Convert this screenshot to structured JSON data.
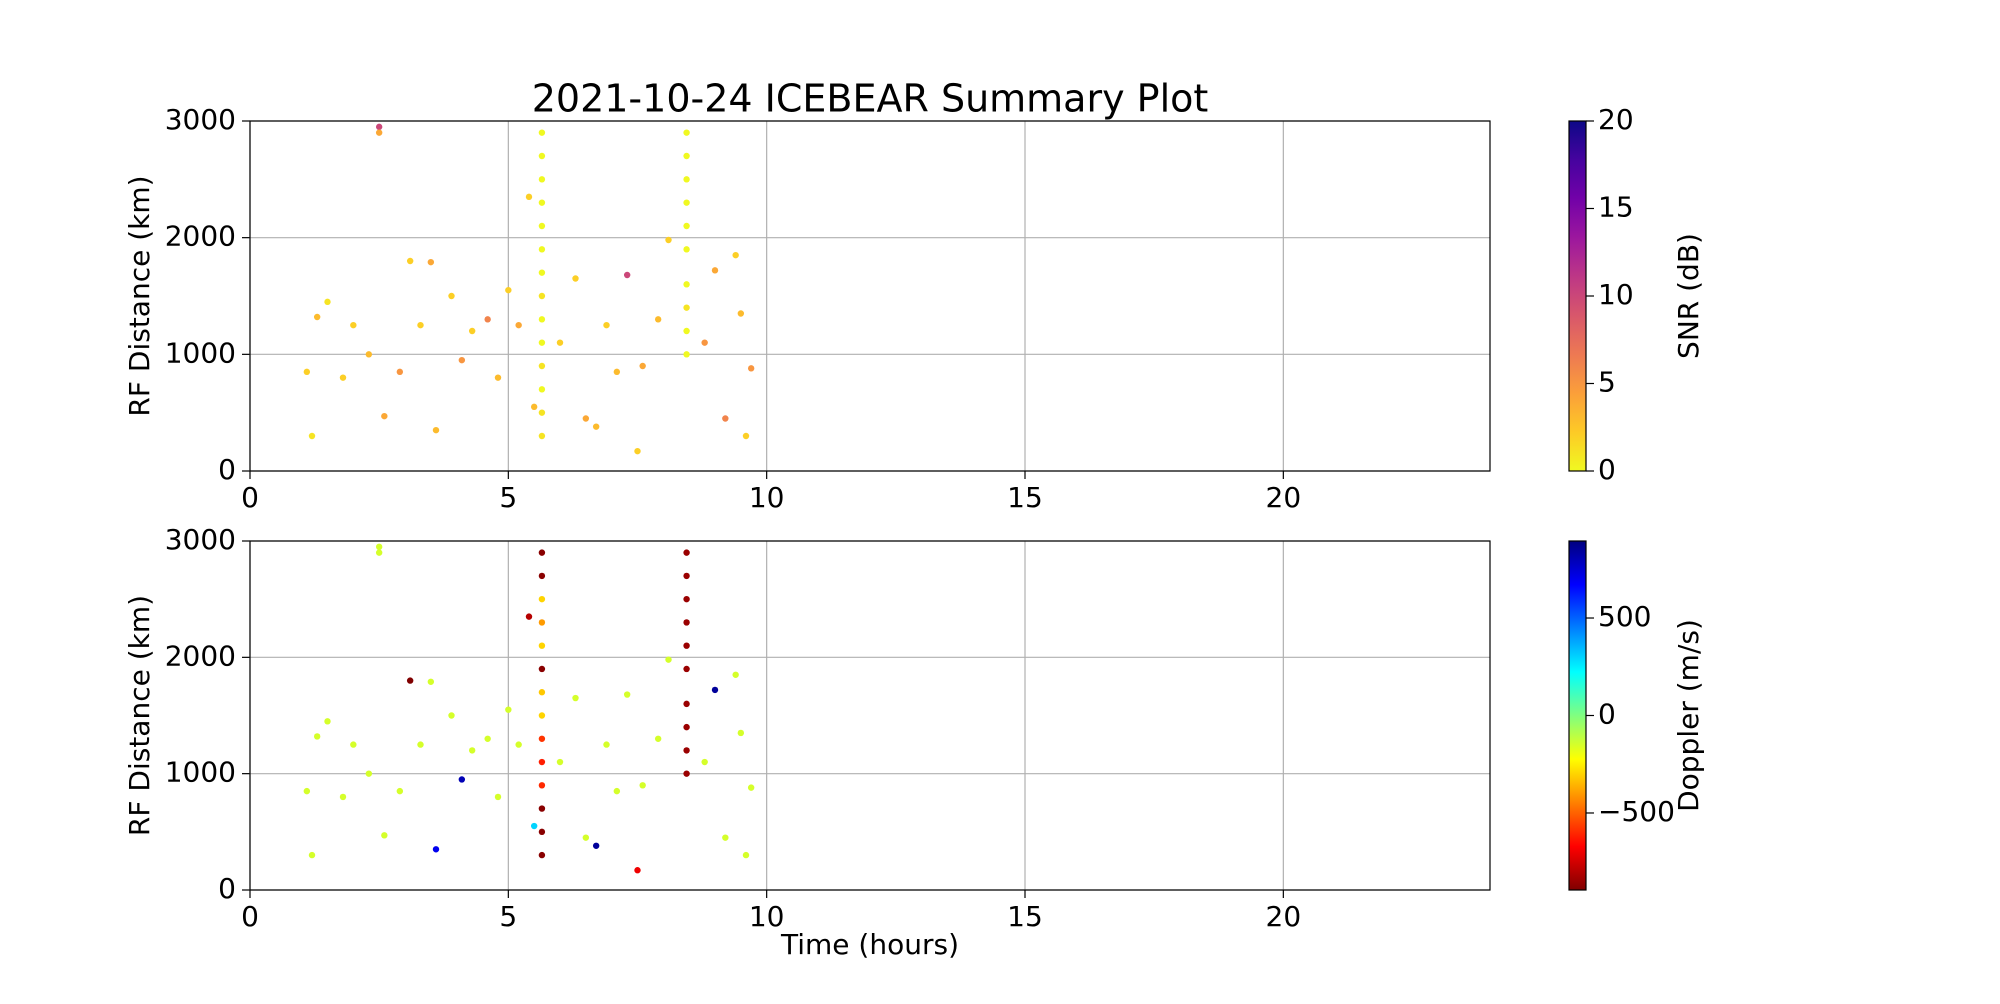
{
  "chart_data": [
    {
      "type": "scatter",
      "title": "2021-10-24 ICEBEAR Summary Plot",
      "ylabel": "RF Distance (km)",
      "colorbar_label": "SNR (dB)",
      "xlim": [
        0,
        24
      ],
      "xticks": [
        0,
        5,
        10,
        15,
        20
      ],
      "ylim": [
        0,
        3000
      ],
      "yticks": [
        0,
        1000,
        2000,
        3000
      ],
      "grid": true,
      "clim": [
        0,
        20
      ],
      "cticks": [
        0,
        5,
        10,
        15,
        20
      ],
      "colormap": [
        "#f0f921",
        "#fdca26",
        "#fb9f3a",
        "#ed7953",
        "#d8576b",
        "#bd3786",
        "#9c179e",
        "#7201a8",
        "#46039f",
        "#0d0887"
      ],
      "x": [
        1.1,
        1.2,
        1.3,
        1.5,
        1.8,
        2.0,
        2.3,
        2.5,
        2.5,
        2.6,
        2.9,
        3.1,
        3.3,
        3.5,
        3.6,
        3.9,
        4.1,
        4.3,
        4.6,
        4.8,
        5.0,
        5.2,
        5.4,
        5.5,
        6.0,
        6.3,
        6.5,
        6.7,
        6.9,
        7.1,
        7.3,
        7.5,
        7.6,
        7.9,
        8.1,
        8.8,
        9.0,
        9.2,
        9.4,
        9.6,
        9.7,
        9.5,
        5.65,
        5.65,
        5.65,
        5.65,
        5.65,
        5.65,
        5.65,
        5.65,
        5.65,
        5.65,
        5.65,
        5.65,
        5.65,
        5.65,
        8.45,
        8.45,
        8.45,
        8.45,
        8.45,
        8.45,
        8.45,
        8.45,
        8.45,
        8.45
      ],
      "y": [
        850,
        300,
        1320,
        1450,
        800,
        1250,
        1000,
        2950,
        2900,
        470,
        850,
        1800,
        1250,
        1790,
        350,
        1500,
        950,
        1200,
        1300,
        800,
        1550,
        1250,
        2350,
        550,
        1100,
        1650,
        450,
        380,
        1250,
        850,
        1680,
        170,
        900,
        1300,
        1980,
        1100,
        1720,
        450,
        1850,
        300,
        880,
        1350,
        300,
        500,
        700,
        900,
        1100,
        1300,
        1500,
        1700,
        1900,
        2100,
        2300,
        2500,
        2700,
        2900,
        1000,
        1200,
        1400,
        1600,
        1900,
        2100,
        2300,
        2500,
        2700,
        2900
      ],
      "c": [
        2,
        1,
        3,
        1,
        2,
        2,
        3,
        10,
        4,
        4,
        5,
        2,
        2,
        4,
        3,
        2,
        5,
        2,
        6,
        3,
        2,
        4,
        2,
        3,
        2,
        2,
        4,
        3,
        2,
        3,
        10,
        2,
        4,
        3,
        2,
        5,
        4,
        6,
        2,
        2,
        5,
        3,
        1,
        1,
        0,
        1,
        0,
        0,
        1,
        0,
        0,
        0,
        0,
        0,
        0,
        0,
        0,
        0,
        1,
        0,
        0,
        0,
        0,
        0,
        0,
        0
      ]
    },
    {
      "type": "scatter",
      "xlabel": "Time (hours)",
      "ylabel": "RF Distance (km)",
      "colorbar_label": "Doppler (m/s)",
      "xlim": [
        0,
        24
      ],
      "xticks": [
        0,
        5,
        10,
        15,
        20
      ],
      "ylim": [
        0,
        3000
      ],
      "yticks": [
        0,
        1000,
        2000,
        3000
      ],
      "grid": true,
      "clim": [
        -895,
        895
      ],
      "cticks": [
        {
          "value": -500,
          "label": "−500"
        },
        0,
        500
      ],
      "colormap": [
        "#800000",
        "#ff0000",
        "#ff8000",
        "#ffff00",
        "#80ff80",
        "#00ffff",
        "#0080ff",
        "#0000ff",
        "#000080"
      ],
      "x": [
        1.1,
        1.2,
        1.3,
        1.5,
        1.8,
        2.0,
        2.3,
        2.5,
        2.5,
        2.6,
        2.9,
        3.1,
        3.3,
        3.5,
        3.6,
        3.9,
        4.1,
        4.3,
        4.6,
        4.8,
        5.0,
        5.2,
        5.4,
        5.5,
        6.0,
        6.3,
        6.5,
        6.7,
        6.9,
        7.1,
        7.3,
        7.5,
        7.6,
        7.9,
        8.1,
        8.8,
        9.0,
        9.2,
        9.4,
        9.6,
        9.7,
        9.5,
        5.65,
        5.65,
        5.65,
        5.65,
        5.65,
        5.65,
        5.65,
        5.65,
        5.65,
        5.65,
        5.65,
        5.65,
        5.65,
        5.65,
        8.45,
        8.45,
        8.45,
        8.45,
        8.45,
        8.45,
        8.45,
        8.45,
        8.45,
        8.45
      ],
      "y": [
        850,
        300,
        1320,
        1450,
        800,
        1250,
        1000,
        2950,
        2900,
        470,
        850,
        1800,
        1250,
        1790,
        350,
        1500,
        950,
        1200,
        1300,
        800,
        1550,
        1250,
        2350,
        550,
        1100,
        1650,
        450,
        380,
        1250,
        850,
        1680,
        170,
        900,
        1300,
        1980,
        1100,
        1720,
        450,
        1850,
        300,
        880,
        1350,
        300,
        500,
        700,
        900,
        1100,
        1300,
        1500,
        1700,
        1900,
        2100,
        2300,
        2500,
        2700,
        2900,
        1000,
        1200,
        1400,
        1600,
        1900,
        2100,
        2300,
        2500,
        2700,
        2900
      ],
      "c": [
        -150,
        -150,
        -150,
        -150,
        -150,
        -150,
        -150,
        -150,
        -150,
        -150,
        -150,
        -900,
        -150,
        -150,
        700,
        -150,
        800,
        -150,
        -150,
        -150,
        -150,
        -150,
        -800,
        300,
        -150,
        -150,
        -150,
        850,
        -150,
        -150,
        -150,
        -700,
        -150,
        -150,
        -150,
        -150,
        850,
        -150,
        -150,
        -150,
        -150,
        -150,
        -880,
        -880,
        -880,
        -600,
        -620,
        -580,
        -300,
        -320,
        -880,
        -300,
        -400,
        -300,
        -880,
        -880,
        -850,
        -850,
        -850,
        -850,
        -850,
        -850,
        -850,
        -850,
        -850,
        -850
      ]
    }
  ]
}
